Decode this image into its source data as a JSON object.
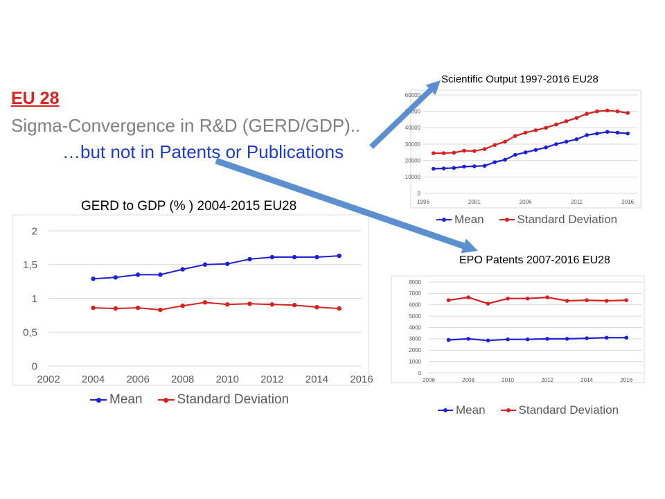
{
  "slide": {
    "heading": "EU 28",
    "line1": "Sigma-Convergence in R&D (GERD/GDP)..",
    "line2": "…but not in Patents or Publications"
  },
  "colors": {
    "mean": "#1f1fd6",
    "std": "#d62020",
    "arrow": "#5b8fd0",
    "grid": "#d9d9d9",
    "axis_text": "#595959"
  },
  "chart_data": [
    {
      "type": "scatter",
      "title": "GERD to GDP (% ) 2004-2015 EU28",
      "xlabel": "",
      "ylabel": "",
      "xlim": [
        2002,
        2016
      ],
      "ylim": [
        0,
        2
      ],
      "xticks": [
        2002,
        2004,
        2006,
        2008,
        2010,
        2012,
        2014,
        2016
      ],
      "xtick_labels": [
        "2002",
        "2004",
        "2006",
        "2008",
        "2010",
        "2012",
        "2014",
        "2016"
      ],
      "yticks": [
        0,
        0.5,
        1,
        1.5,
        2
      ],
      "ytick_labels": [
        "0",
        "0,5",
        "1",
        "1,5",
        "2"
      ],
      "grid": true,
      "legend_position": "bottom",
      "series": [
        {
          "name": "Mean",
          "x": [
            2004,
            2005,
            2006,
            2007,
            2008,
            2009,
            2010,
            2011,
            2012,
            2013,
            2014,
            2015
          ],
          "y": [
            1.29,
            1.31,
            1.35,
            1.35,
            1.43,
            1.5,
            1.51,
            1.58,
            1.61,
            1.61,
            1.61,
            1.63
          ]
        },
        {
          "name": "Standard Deviation",
          "x": [
            2004,
            2005,
            2006,
            2007,
            2008,
            2009,
            2010,
            2011,
            2012,
            2013,
            2014,
            2015
          ],
          "y": [
            0.86,
            0.85,
            0.86,
            0.83,
            0.89,
            0.94,
            0.91,
            0.92,
            0.91,
            0.9,
            0.87,
            0.85
          ]
        }
      ]
    },
    {
      "type": "scatter",
      "title": "Scientific Output 1997-2016 EU28",
      "xlabel": "",
      "ylabel": "",
      "xlim": [
        1996,
        2017
      ],
      "ylim": [
        0,
        60000
      ],
      "xticks": [
        1996,
        2001,
        2006,
        2011,
        2016
      ],
      "xtick_labels": [
        "1996",
        "2001",
        "2006",
        "2011",
        "2016"
      ],
      "yticks": [
        0,
        10000,
        20000,
        30000,
        40000,
        50000,
        60000
      ],
      "ytick_labels": [
        "0",
        "10000",
        "20000",
        "30000",
        "40000",
        "50000",
        "60000"
      ],
      "grid": true,
      "legend_position": "bottom",
      "series": [
        {
          "name": "Mean",
          "x": [
            1997,
            1998,
            1999,
            2000,
            2001,
            2002,
            2003,
            2004,
            2005,
            2006,
            2007,
            2008,
            2009,
            2010,
            2011,
            2012,
            2013,
            2014,
            2015,
            2016
          ],
          "y": [
            15000,
            15200,
            15500,
            16300,
            16500,
            16800,
            19000,
            20500,
            23500,
            25000,
            26500,
            28000,
            30000,
            31500,
            33000,
            35500,
            36500,
            37500,
            37000,
            36500
          ]
        },
        {
          "name": "Standard Deviation",
          "x": [
            1997,
            1998,
            1999,
            2000,
            2001,
            2002,
            2003,
            2004,
            2005,
            2006,
            2007,
            2008,
            2009,
            2010,
            2011,
            2012,
            2013,
            2014,
            2015,
            2016
          ],
          "y": [
            24500,
            24500,
            24800,
            26000,
            25800,
            27000,
            29500,
            31500,
            35000,
            37000,
            38500,
            40000,
            42000,
            44000,
            46000,
            48500,
            50000,
            50500,
            50000,
            49000
          ]
        }
      ]
    },
    {
      "type": "scatter",
      "title": "EPO Patents 2007-2016 EU28",
      "xlabel": "",
      "ylabel": "",
      "xlim": [
        2006,
        2016.8
      ],
      "ylim": [
        0,
        8000
      ],
      "xticks": [
        2006,
        2008,
        2010,
        2012,
        2014,
        2016
      ],
      "xtick_labels": [
        "2006",
        "2008",
        "2010",
        "2012",
        "2014",
        "2016"
      ],
      "yticks": [
        0,
        1000,
        2000,
        3000,
        4000,
        5000,
        6000,
        7000,
        8000
      ],
      "ytick_labels": [
        "0",
        "1000",
        "2000",
        "3000",
        "4000",
        "5000",
        "6000",
        "7000",
        "8000"
      ],
      "grid": true,
      "legend_position": "bottom",
      "series": [
        {
          "name": "Mean",
          "x": [
            2007,
            2008,
            2009,
            2010,
            2011,
            2012,
            2013,
            2014,
            2015,
            2016
          ],
          "y": [
            2900,
            3000,
            2850,
            2950,
            2950,
            3000,
            3000,
            3050,
            3100,
            3100
          ]
        },
        {
          "name": "Standard Deviation",
          "x": [
            2007,
            2008,
            2009,
            2010,
            2011,
            2012,
            2013,
            2014,
            2015,
            2016
          ],
          "y": [
            6400,
            6650,
            6100,
            6550,
            6550,
            6650,
            6350,
            6400,
            6350,
            6400
          ]
        }
      ]
    }
  ]
}
